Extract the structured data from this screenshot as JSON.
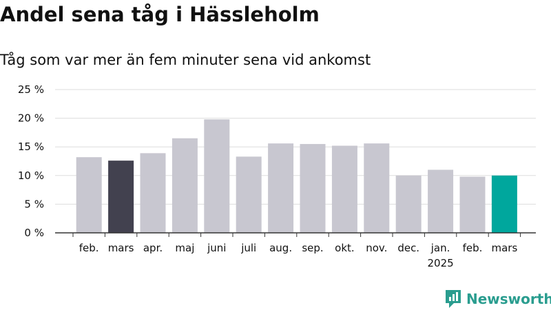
{
  "header": {
    "title": "Andel sena tåg i Hässleholm",
    "subtitle": "Tåg som var mer än fem minuter sena vid ankomst"
  },
  "brand": {
    "name": "Newsworthy",
    "color": "#2a9d8f"
  },
  "colors": {
    "default": "#c8c7d0",
    "previous_year": "#42414f",
    "latest": "#00a79d",
    "grid": "#dddddd",
    "axis": "#333333"
  },
  "chart_data": {
    "type": "bar",
    "title": "Andel sena tåg i Hässleholm",
    "subtitle": "Tåg som var mer än fem minuter sena vid ankomst",
    "xlabel": "",
    "ylabel": "",
    "categories": [
      "feb.",
      "mars",
      "apr.",
      "maj",
      "juni",
      "juli",
      "aug.",
      "sep.",
      "okt.",
      "nov.",
      "dec.",
      "jan.",
      "feb.",
      "mars"
    ],
    "year_labels": [
      {
        "index": 11,
        "label": "2025"
      }
    ],
    "values": [
      13.2,
      12.6,
      13.9,
      16.5,
      19.8,
      13.3,
      15.6,
      15.5,
      15.2,
      15.6,
      10.0,
      11.0,
      9.8,
      10.0
    ],
    "highlight": [
      {
        "index": 1,
        "color": "previous_year"
      },
      {
        "index": 13,
        "color": "latest"
      }
    ],
    "ylim": [
      0,
      25
    ],
    "yticks": [
      0,
      5,
      10,
      15,
      20,
      25
    ],
    "ytick_labels": [
      "0 %",
      "5 %",
      "10 %",
      "15 %",
      "20 %",
      "25 %"
    ],
    "grid": true,
    "legend": "none"
  }
}
